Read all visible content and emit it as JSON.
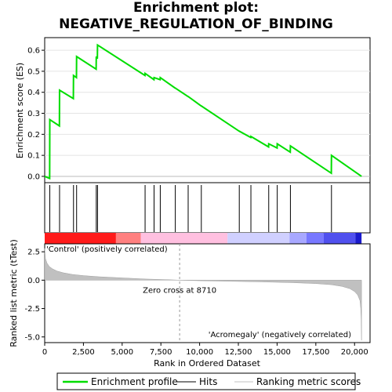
{
  "title_line1": "Enrichment plot:",
  "title_line2": "NEGATIVE_REGULATION_OF_BINDING",
  "chart_data": {
    "type": "line",
    "x_range": [
      0,
      21000
    ],
    "x_ticks": [
      0,
      2500,
      5000,
      7500,
      10000,
      12500,
      15000,
      17500,
      20000
    ],
    "x_tick_labels": [
      "0",
      "2,500",
      "5,000",
      "7,500",
      "10,000",
      "12,500",
      "15,000",
      "17,500",
      "20,000"
    ],
    "xlabel": "Rank in Ordered Dataset",
    "top_panel": {
      "ylabel": "Enrichment score (ES)",
      "ylim": [
        -0.03,
        0.66
      ],
      "y_ticks": [
        0.0,
        0.1,
        0.2,
        0.3,
        0.4,
        0.5,
        0.6
      ],
      "y_tick_labels": [
        "0.0",
        "0.1",
        "0.2",
        "0.3",
        "0.4",
        "0.5",
        "0.6"
      ],
      "series": [
        {
          "name": "Enrichment profile",
          "color": "#00dd00",
          "x": [
            0,
            320,
            330,
            950,
            960,
            1850,
            1860,
            2050,
            2060,
            3320,
            3330,
            3400,
            3410,
            6470,
            6480,
            7050,
            7060,
            7450,
            7460,
            8420,
            8430,
            9250,
            9260,
            10100,
            10110,
            12550,
            12560,
            13300,
            13310,
            14450,
            14460,
            15000,
            15010,
            15850,
            15860,
            18500,
            18510,
            20450
          ],
          "y": [
            0.0,
            -0.01,
            0.27,
            0.24,
            0.41,
            0.37,
            0.48,
            0.47,
            0.57,
            0.51,
            0.57,
            0.56,
            0.625,
            0.48,
            0.49,
            0.46,
            0.47,
            0.46,
            0.47,
            0.42,
            0.42,
            0.38,
            0.38,
            0.335,
            0.335,
            0.215,
            0.215,
            0.185,
            0.19,
            0.14,
            0.155,
            0.135,
            0.155,
            0.115,
            0.145,
            0.015,
            0.1,
            0.0
          ]
        }
      ]
    },
    "hits": [
      330,
      960,
      1860,
      2060,
      3330,
      3410,
      6480,
      7060,
      7460,
      8430,
      9260,
      10110,
      12560,
      13310,
      14460,
      15010,
      15860,
      18510
    ],
    "bottom_panel": {
      "ylabel": "Ranked list metric (tTest)",
      "ylim": [
        -5.5,
        3.2
      ],
      "y_ticks": [
        2.5,
        0.0,
        -2.5,
        -5.0
      ],
      "y_tick_labels": [
        "2.5",
        "0.0",
        "-2.5",
        "-5.0"
      ],
      "series": [
        {
          "name": "Ranking metric scores",
          "color": "#c0c0c0",
          "x": [
            0,
            50,
            150,
            300,
            500,
            800,
            1200,
            1800,
            2500,
            3500,
            5000,
            6500,
            8000,
            8710,
            10000,
            12000,
            14000,
            16000,
            17500,
            18500,
            19200,
            19700,
            20000,
            20200,
            20350,
            20400,
            20430,
            20450
          ],
          "y": [
            2.8,
            1.9,
            1.5,
            1.2,
            1.0,
            0.8,
            0.65,
            0.5,
            0.4,
            0.3,
            0.2,
            0.1,
            0.04,
            0.0,
            -0.05,
            -0.1,
            -0.15,
            -0.22,
            -0.3,
            -0.4,
            -0.55,
            -0.75,
            -1.0,
            -1.3,
            -1.8,
            -2.5,
            -3.5,
            -5.3
          ]
        }
      ],
      "zero_cross_label": "Zero cross at 8710",
      "zero_cross_x": 8710,
      "positive_label": "'Control' (positively correlated)",
      "negative_label": "'Acromegaly' (negatively correlated)",
      "positive_label_color": "#cc0000",
      "negative_label_color": "#0000cc"
    },
    "color_bar": [
      {
        "x0": 0,
        "x1": 4600,
        "color": "#ff1a1a"
      },
      {
        "x0": 4600,
        "x1": 6200,
        "color": "#ff8080"
      },
      {
        "x0": 6200,
        "x1": 11800,
        "color": "#ffc0e0"
      },
      {
        "x0": 11800,
        "x1": 15800,
        "color": "#d0d0ff"
      },
      {
        "x0": 15800,
        "x1": 16900,
        "color": "#a8a8ff"
      },
      {
        "x0": 16900,
        "x1": 18000,
        "color": "#7878ff"
      },
      {
        "x0": 18000,
        "x1": 20050,
        "color": "#5050ee"
      },
      {
        "x0": 20050,
        "x1": 20450,
        "color": "#1a1acc"
      }
    ],
    "legend": [
      {
        "label": "Enrichment profile",
        "color": "#00dd00",
        "kind": "line"
      },
      {
        "label": "Hits",
        "color": "#000000",
        "kind": "line"
      },
      {
        "label": "Ranking metric scores",
        "color": "#c0c0c0",
        "kind": "line"
      }
    ]
  }
}
